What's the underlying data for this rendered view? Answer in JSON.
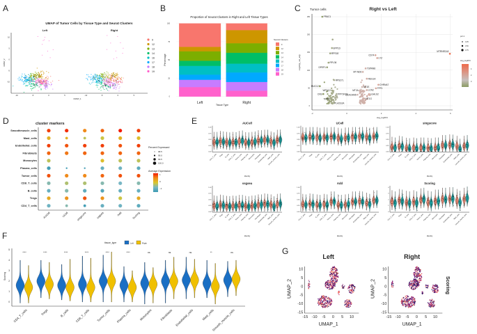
{
  "panel_letters": [
    "A",
    "B",
    "C",
    "D",
    "E",
    "F",
    "G"
  ],
  "chart_data": [
    {
      "id": "A",
      "type": "scatter",
      "title": "UMAP of Tumor Cells by Tissue Type and Seurat Clusters",
      "facets": [
        "Left",
        "Right"
      ],
      "xlabel": "UMAP_1",
      "ylabel": "UMAP_2",
      "xticks": [
        "-10",
        "-5",
        "0",
        "5"
      ],
      "yticks": [
        "10",
        "5",
        "0",
        "-5",
        "-10"
      ],
      "xlim": [
        -12,
        9
      ],
      "ylim": [
        -14,
        12
      ],
      "clusters": [
        {
          "name": "9",
          "color": "#F8766D",
          "centers": [
            [
              -1.5,
              -9.8
            ],
            [
              -0.5,
              -9.5
            ]
          ]
        },
        {
          "name": "12",
          "color": "#CD9600",
          "centers": [
            [
              -3.0,
              -7.2
            ],
            [
              -1.5,
              -7.3
            ]
          ]
        },
        {
          "name": "13",
          "color": "#7CAE00",
          "centers": [
            [
              -4.5,
              -7.5
            ],
            [
              -4.5,
              -7.5
            ]
          ]
        },
        {
          "name": "14",
          "color": "#00BE67",
          "centers": [
            [
              -4.5,
              -11.2
            ],
            [
              -4.0,
              -11.5
            ]
          ]
        },
        {
          "name": "16",
          "color": "#00BFC4",
          "centers": [
            [
              -6.0,
              -9.5
            ],
            [
              -6.0,
              -9.5
            ]
          ]
        },
        {
          "name": "17",
          "color": "#00A9FF",
          "centers": [
            [
              -7.2,
              -8.5
            ],
            [
              -7.5,
              -8.5
            ]
          ]
        },
        {
          "name": "18",
          "color": "#C77CFF",
          "centers": [
            [
              -0.8,
              -11.5
            ],
            [
              -1.5,
              -11.5
            ]
          ]
        },
        {
          "name": "19",
          "color": "#FF61CC",
          "centers": [
            [
              -3.0,
              -10.0
            ],
            [
              -3.0,
              -10.0
            ]
          ]
        }
      ]
    },
    {
      "id": "B",
      "type": "bar",
      "stacked": true,
      "title": "Proportion of Seurat Clusters in Right and Left Tissue Types",
      "xlabel": "Tissue Type",
      "ylabel": "Percentage",
      "categories": [
        "Left",
        "Right"
      ],
      "ylim": [
        0,
        100
      ],
      "yticks": [
        "0",
        "25",
        "50",
        "75",
        "100"
      ],
      "legend_title": "Seurat Clusters",
      "series": [
        {
          "name": "9",
          "color": "#F8766D",
          "values": [
            32,
            9
          ]
        },
        {
          "name": "12",
          "color": "#CD9600",
          "values": [
            6,
            18
          ]
        },
        {
          "name": "13",
          "color": "#7CAE00",
          "values": [
            13,
            13
          ]
        },
        {
          "name": "14",
          "color": "#00BE67",
          "values": [
            7,
            15
          ]
        },
        {
          "name": "16",
          "color": "#00BFC4",
          "values": [
            12,
            12
          ]
        },
        {
          "name": "17",
          "color": "#00A9FF",
          "values": [
            7,
            13
          ]
        },
        {
          "name": "18",
          "color": "#C77CFF",
          "values": [
            10,
            12
          ]
        },
        {
          "name": "19",
          "color": "#FF61CC",
          "values": [
            13,
            8
          ]
        }
      ]
    },
    {
      "id": "C",
      "type": "scatter",
      "title": "Right vs Left",
      "subtitle": "Tumor cells",
      "xlabel": "avg_log2FC",
      "ylabel": "-log10(p_val_adj)",
      "xticks": [
        "-2",
        "0",
        "2",
        "4",
        "6"
      ],
      "yticks": [
        "0",
        "50",
        "100",
        "150",
        "200",
        "250"
      ],
      "xlim": [
        -2,
        6.1
      ],
      "ylim": [
        0,
        260
      ],
      "points": [
        {
          "gene": "PRAC1",
          "x": -1.42,
          "y": 250
        },
        {
          "gene": "",
          "x": -0.82,
          "y": 186
        },
        {
          "gene": "BPP1D",
          "x": -0.86,
          "y": 162
        },
        {
          "gene": "RPS18",
          "x": -0.96,
          "y": 147
        },
        {
          "gene": "RPL36",
          "x": -1.06,
          "y": 121
        },
        {
          "gene": "DPEP1",
          "x": -1.14,
          "y": 108
        },
        {
          "gene": "RPS27L",
          "x": -0.73,
          "y": 72
        },
        {
          "gene": "MUC12",
          "x": -1.56,
          "y": 55
        },
        {
          "gene": "WFDC2",
          "x": -0.86,
          "y": 43
        },
        {
          "gene": "CKB",
          "x": -1.36,
          "y": 33
        },
        {
          "gene": "PPP1R1B",
          "x": -0.59,
          "y": 33
        },
        {
          "gene": "TIMP3",
          "x": -0.9,
          "y": 19
        },
        {
          "gene": "PLA2G2A",
          "x": -0.79,
          "y": 7
        },
        {
          "gene": "CD74",
          "x": 1.66,
          "y": 142
        },
        {
          "gene": "LYZ",
          "x": 1.76,
          "y": 134
        },
        {
          "gene": "TSPAN8",
          "x": 1.09,
          "y": 105
        },
        {
          "gene": "MT-ND6",
          "x": 0.93,
          "y": 95
        },
        {
          "gene": "REG1A",
          "x": 1.16,
          "y": 76
        },
        {
          "gene": "CHRNA7",
          "x": 1.83,
          "y": 59
        },
        {
          "gene": "MT1E",
          "x": 0.89,
          "y": 53
        },
        {
          "gene": "TFF1",
          "x": 1.69,
          "y": 49
        },
        {
          "gene": "MT2A",
          "x": 0.75,
          "y": 43
        },
        {
          "gene": "LCN2",
          "x": 1.16,
          "y": 44
        },
        {
          "gene": "CEACAM6",
          "x": 0.62,
          "y": 31
        },
        {
          "gene": "LGALS2",
          "x": 1.29,
          "y": 33
        },
        {
          "gene": "MT1G",
          "x": 1.02,
          "y": 20
        },
        {
          "gene": "MTRNR2L8",
          "x": 5.97,
          "y": 146
        }
      ],
      "legend": {
        "size_title": "pct.1",
        "size_values": [
          "0.25",
          "0.50",
          "0.75"
        ],
        "color_title": "avg_log2FC",
        "color_ticks": [
          "4",
          "2",
          "0"
        ],
        "color_low": "#8A9A62",
        "color_mid": "#C8C0BE",
        "color_high": "#EE6A4A"
      }
    },
    {
      "id": "D",
      "type": "dotplot",
      "title": "cluster markers",
      "rows": [
        "Smoothmuscle_cells",
        "Mast_cells",
        "Endothelial_cells",
        "Fibroblasts",
        "Monocytes",
        "Plasma_cells",
        "Tumor_cells",
        "CD8_T_cells",
        "B_cells",
        "Tregs",
        "CD4_T_cells"
      ],
      "columns": [
        "AUCell",
        "UCell",
        "singscore",
        "ssgsea",
        "Add",
        "Scoring"
      ],
      "avg_expression": [
        [
          1.0,
          1.1,
          0.6,
          0.8,
          1.2,
          1.0
        ],
        [
          0.2,
          0.2,
          -0.2,
          -0.1,
          0.2,
          0.1
        ],
        [
          1.0,
          0.9,
          1.0,
          1.0,
          0.9,
          1.0
        ],
        [
          0.8,
          0.7,
          0.8,
          0.8,
          0.8,
          0.8
        ],
        [
          -0.2,
          0.0,
          0.0,
          0.1,
          -0.2,
          -0.2
        ],
        [
          -1.3,
          -1.3,
          -1.2,
          -0.9,
          -0.8,
          -1.0
        ],
        [
          0.9,
          0.6,
          0.6,
          0.8,
          0.9,
          0.9
        ],
        [
          -0.6,
          -0.3,
          -0.3,
          -0.6,
          -0.7,
          -0.6
        ],
        [
          -0.9,
          -0.6,
          -1.0,
          -1.1,
          -0.9,
          -0.9
        ],
        [
          0.3,
          0.5,
          0.9,
          0.5,
          -0.1,
          0.3
        ],
        [
          -0.8,
          -0.6,
          -1.3,
          -0.9,
          -0.8,
          -1.0
        ]
      ],
      "pct_expressed": [
        [
          100,
          100,
          100,
          100,
          100,
          100
        ],
        [
          100,
          99.5,
          99.5,
          100,
          100,
          100
        ],
        [
          100,
          100,
          100,
          100,
          100,
          100
        ],
        [
          100,
          100,
          100,
          100,
          100,
          100
        ],
        [
          100,
          98.0,
          98.0,
          100,
          100,
          100
        ],
        [
          100,
          99.0,
          99.0,
          100,
          100,
          100
        ],
        [
          100,
          100,
          100,
          100,
          100,
          100
        ],
        [
          100,
          100,
          100,
          100,
          100,
          100
        ],
        [
          100,
          100,
          100,
          100,
          100,
          100
        ],
        [
          100,
          100,
          100,
          100,
          100,
          100
        ],
        [
          100,
          99.5,
          99.5,
          100,
          100,
          100
        ]
      ],
      "size_legend_title": "Percent Expressed",
      "size_legend_values": [
        "98.5",
        "99.0",
        "99.5",
        "100.0"
      ],
      "color_legend_title": "Average Expression",
      "color_legend_ticks": [
        "1",
        "0",
        "−1"
      ],
      "palette": [
        "#3B9AB2",
        "#78B7C5",
        "#D9C72E",
        "#F08A1A",
        "#F21A00"
      ]
    },
    {
      "id": "E",
      "type": "violin",
      "categories": [
        "CD4_T_cells",
        "Tregs",
        "B_cells",
        "CD8_T_cells",
        "Tumor_cells",
        "Plasma_cells",
        "Monocytes",
        "Fibroblasts",
        "Endothelial_cells",
        "Mast_cells",
        "Smooth_muscle_cells"
      ],
      "xlabel": "Identity",
      "group_colors": [
        "#D9826F",
        "#1C9A9A"
      ],
      "panels": [
        {
          "title": "AUCell",
          "ymax": 1.0,
          "yticks": [
            "0.00",
            "0.25",
            "0.50",
            "0.75",
            "1.00"
          ],
          "left": [
            0.38,
            0.42,
            0.38,
            0.38,
            0.42,
            0.37,
            0.38,
            0.45,
            0.47,
            0.4,
            0.47
          ],
          "right": [
            0.38,
            0.4,
            0.36,
            0.37,
            0.44,
            0.36,
            0.4,
            0.45,
            0.47,
            0.36,
            0.48
          ]
        },
        {
          "title": "UCell",
          "ymax": 1.0,
          "yticks": [
            "0.00",
            "0.25",
            "0.50",
            "0.75",
            "1.00"
          ],
          "left": [
            0.58,
            0.6,
            0.58,
            0.58,
            0.6,
            0.55,
            0.56,
            0.6,
            0.62,
            0.6,
            0.62
          ],
          "right": [
            0.56,
            0.58,
            0.55,
            0.56,
            0.6,
            0.52,
            0.56,
            0.6,
            0.62,
            0.55,
            0.64
          ]
        },
        {
          "title": "singscore",
          "ymax": 1.0,
          "yticks": [
            "0.00",
            "0.25",
            "0.50",
            "0.75",
            "1.00"
          ],
          "left": [
            0.18,
            0.22,
            0.14,
            0.15,
            0.15,
            0.14,
            0.15,
            0.25,
            0.28,
            0.22,
            0.22
          ],
          "right": [
            0.15,
            0.2,
            0.12,
            0.12,
            0.15,
            0.12,
            0.15,
            0.25,
            0.27,
            0.1,
            0.25
          ]
        },
        {
          "title": "ssgsea",
          "ymax": 1.0,
          "yticks": [
            "0.00",
            "0.25",
            "0.50",
            "0.75",
            "1.00"
          ],
          "left": [
            0.24,
            0.27,
            0.22,
            0.23,
            0.26,
            0.22,
            0.23,
            0.28,
            0.32,
            0.28,
            0.3
          ],
          "right": [
            0.22,
            0.25,
            0.21,
            0.22,
            0.26,
            0.2,
            0.24,
            0.28,
            0.3,
            0.2,
            0.32
          ]
        },
        {
          "title": "Add",
          "ymax": 1.0,
          "yticks": [
            "0.00",
            "0.25",
            "0.50",
            "0.75",
            "1.00"
          ],
          "left": [
            0.3,
            0.32,
            0.28,
            0.3,
            0.4,
            0.28,
            0.28,
            0.4,
            0.42,
            0.35,
            0.45
          ],
          "right": [
            0.28,
            0.3,
            0.26,
            0.28,
            0.4,
            0.26,
            0.3,
            0.4,
            0.4,
            0.3,
            0.45
          ]
        },
        {
          "title": "Scoring",
          "ymax": 4.5,
          "yticks": [
            "0",
            "1",
            "2",
            "3",
            "4"
          ],
          "left": [
            1.6,
            1.8,
            1.5,
            1.6,
            1.9,
            1.5,
            1.7,
            2.0,
            2.1,
            1.8,
            2.0
          ],
          "right": [
            1.4,
            1.7,
            1.4,
            1.4,
            2.0,
            1.4,
            1.7,
            2.0,
            2.1,
            1.5,
            2.2
          ]
        }
      ]
    },
    {
      "id": "F",
      "type": "violin",
      "ylabel": "Scoring",
      "legend_title": "tissue_type",
      "groups": [
        "Left",
        "Right"
      ],
      "group_colors": [
        "#1A6FC4",
        "#F0C000"
      ],
      "categories": [
        "CD4_T_cells",
        "Tregs",
        "B_cells",
        "CD8_T_cells",
        "Tumor_cells",
        "Plasma_cells",
        "Monocytes",
        "Fibroblasts",
        "Endothelial_cells",
        "Mast_cells",
        "Smooth_muscle_cells"
      ],
      "significance": [
        "****",
        "****",
        "****",
        "****",
        "****",
        "****",
        "ns",
        "ns",
        "ns",
        "**",
        "ns"
      ],
      "yticks": [
        "0",
        "1",
        "2",
        "3",
        "4",
        "5"
      ],
      "ylim": [
        -0.3,
        5
      ],
      "left_median": [
        1.6,
        2.0,
        1.6,
        1.7,
        2.0,
        1.6,
        1.8,
        2.0,
        2.1,
        1.8,
        2.1
      ],
      "right_median": [
        1.4,
        1.7,
        1.4,
        1.4,
        2.0,
        1.4,
        1.7,
        2.0,
        2.1,
        1.5,
        2.2
      ],
      "left_max": [
        4.0,
        4.0,
        3.6,
        4.4,
        4.5,
        3.4,
        3.8,
        4.0,
        4.3,
        4.0,
        3.9
      ],
      "right_max": [
        3.5,
        3.8,
        4.1,
        4.2,
        4.8,
        3.0,
        3.3,
        4.3,
        4.1,
        3.7,
        4.0
      ],
      "left_min": [
        -0.1,
        0.4,
        0.2,
        0.0,
        0.0,
        0.0,
        -0.2,
        -0.1,
        0.3,
        0.4,
        0.5
      ],
      "right_min": [
        -0.1,
        0.3,
        0.1,
        0.0,
        0.0,
        0.0,
        -0.1,
        0.3,
        0.4,
        -0.2,
        0.6
      ]
    },
    {
      "id": "G",
      "type": "scatter",
      "facets": [
        "Left",
        "Right"
      ],
      "xlabel": "UMAP_1",
      "ylabel": "UMAP_2",
      "color_label": "Scoring",
      "xticks": [
        "-15",
        "-10",
        "-5",
        "0",
        "5",
        "10"
      ],
      "yticks": [
        "10",
        "5",
        "0",
        "-5",
        "-10",
        "-15"
      ],
      "palette": [
        "#2C115F",
        "#5C1A7A",
        "#8C2981",
        "#B73779",
        "#DE4968",
        "#F7705C",
        "#FE9F6D"
      ]
    }
  ]
}
